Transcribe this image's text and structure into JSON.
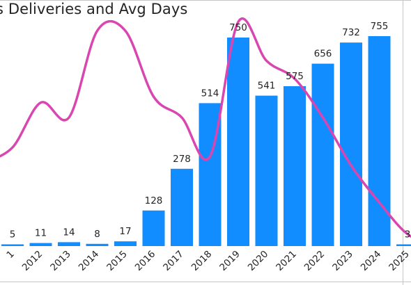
{
  "header": {
    "title": "s Deliveries and Avg Days"
  },
  "colors": {
    "bar": "#118DFF",
    "line": "#D946B0",
    "text": "#252423"
  },
  "chart_data": {
    "type": "bar",
    "title": "s Deliveries and Avg Days",
    "categories": [
      "1",
      "2012",
      "2013",
      "2014",
      "2015",
      "2016",
      "2017",
      "2018",
      "2019",
      "2020",
      "2021",
      "2022",
      "2023",
      "2024",
      "2025"
    ],
    "series": [
      {
        "type": "bar",
        "values": [
          5,
          11,
          14,
          8,
          17,
          128,
          278,
          514,
          750,
          541,
          575,
          656,
          732,
          755,
          3
        ]
      },
      {
        "type": "line",
        "values": [
          16.5,
          24,
          21.5,
          36,
          36,
          25,
          21.5,
          15,
          37.5,
          31,
          28,
          21.5,
          13.5,
          7.3,
          2
        ]
      }
    ],
    "data_labels": [
      "5",
      "11",
      "14",
      "8",
      "17",
      "128",
      "278",
      "514",
      "750",
      "541",
      "575",
      "656",
      "732",
      "755",
      "3"
    ],
    "ylim": [
      0,
      860
    ],
    "line_ylim": [
      0,
      40
    ],
    "grid": false,
    "legend": "none"
  }
}
